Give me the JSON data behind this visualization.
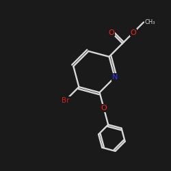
{
  "background_color": "#1a1a1a",
  "bond_color": "#d8d8d8",
  "atom_colors": {
    "N": "#3333ff",
    "O": "#ff2020",
    "Br": "#cc2222",
    "C": "#d8d8d8"
  },
  "figsize": [
    2.5,
    2.5
  ],
  "dpi": 100,
  "xlim": [
    0,
    10
  ],
  "ylim": [
    0,
    10
  ]
}
